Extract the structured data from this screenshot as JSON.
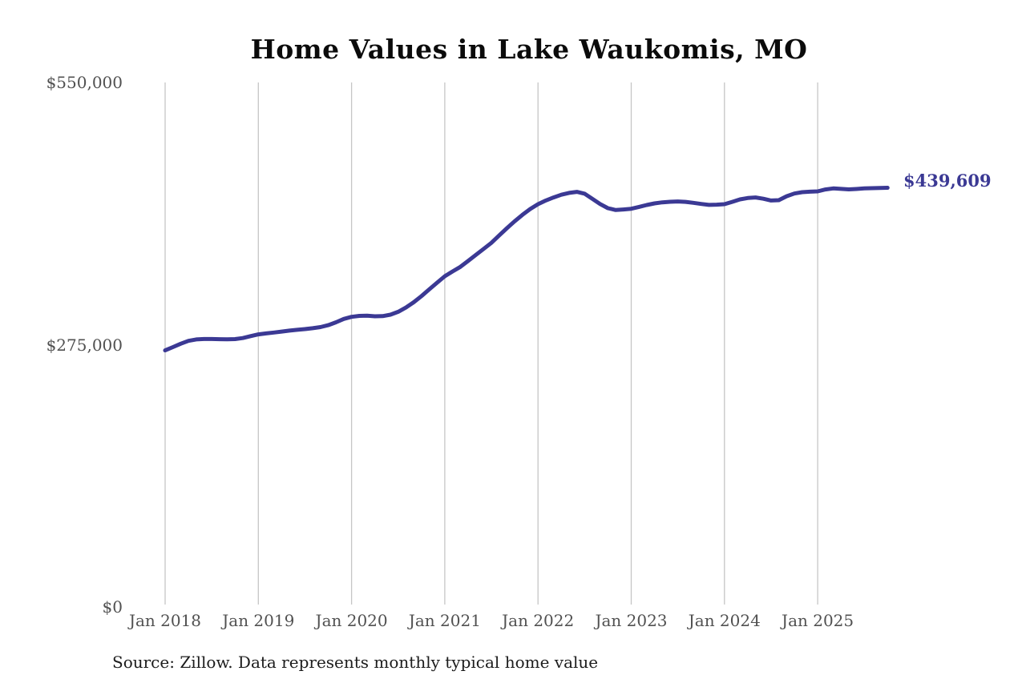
{
  "page": {
    "background_color": "#ffffff"
  },
  "chart": {
    "title": "Home Values in Lake Waukomis, MO",
    "source_note": "Source: Zillow. Data represents monthly typical home value",
    "end_label": "$439,609",
    "colors": {
      "line": "#3b3994",
      "annotation": "#3b3994",
      "gridline": "#c6c6c6",
      "tick_text": "#515151",
      "title_text": "#0b0b0b",
      "source_text": "#1c1c1c"
    }
  },
  "chart_data": {
    "type": "line",
    "title": "Home Values in Lake Waukomis, MO",
    "series_name": "Monthly typical home value",
    "x_start": "Jan 2018",
    "x_end": "Oct 2025",
    "frequency": "monthly",
    "x_tick_labels": [
      "Jan 2018",
      "Jan 2019",
      "Jan 2020",
      "Jan 2021",
      "Jan 2022",
      "Jan 2023",
      "Jan 2024",
      "Jan 2025"
    ],
    "y_ticks": [
      {
        "label": "$550,000",
        "value": 550000
      },
      {
        "label": "$275,000",
        "value": 275000
      },
      {
        "label": "$0",
        "value": 0
      }
    ],
    "ylim": [
      0,
      550000
    ],
    "grid": "vertical-only",
    "legend": "none",
    "line_color": "#3b3994",
    "values": [
      269000,
      272500,
      276000,
      279000,
      280500,
      281000,
      281000,
      280800,
      280700,
      280900,
      282000,
      284000,
      285800,
      286800,
      287800,
      288800,
      289800,
      290600,
      291400,
      292300,
      293500,
      295500,
      298500,
      302000,
      304200,
      305200,
      305400,
      304800,
      305000,
      306500,
      309500,
      314000,
      319500,
      326000,
      333000,
      340000,
      346800,
      351800,
      356600,
      362800,
      369200,
      375500,
      381800,
      389500,
      397200,
      404500,
      411200,
      417300,
      422400,
      426200,
      429400,
      432300,
      434200,
      435300,
      433400,
      428000,
      422500,
      418200,
      416200,
      416800,
      417600,
      419500,
      421500,
      423200,
      424300,
      424900,
      425200,
      424800,
      423800,
      422600,
      421600,
      421900,
      422400,
      424800,
      427400,
      428800,
      429400,
      428100,
      426200,
      426600,
      430700,
      433500,
      435000,
      435500,
      435800,
      437800,
      438900,
      438400,
      437900,
      438300,
      438900,
      439200,
      439450,
      439609
    ],
    "final_value": 439609,
    "final_value_label": "$439,609"
  }
}
